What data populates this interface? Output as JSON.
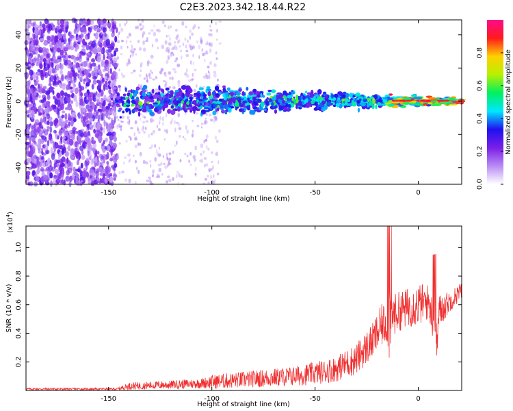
{
  "title": "C2E3.2023.342.18.44.R22",
  "chart_data": [
    {
      "type": "heatmap",
      "xlabel": "Height of straight line (km)",
      "ylabel": "Frequency (Hz)",
      "xlim": [
        -190,
        21
      ],
      "ylim": [
        -50,
        49
      ],
      "xticks": [
        -150,
        -100,
        -50,
        0
      ],
      "yticks": [
        -40,
        -20,
        0,
        20,
        40
      ],
      "colorbar": {
        "label": "Normalized spectral amplitude",
        "range": [
          0,
          1
        ],
        "ticks": [
          0.0,
          0.2,
          0.4,
          0.6,
          0.8
        ],
        "colormap": [
          "#ffffff",
          "#b98cf5",
          "#7a1fe6",
          "#1f10f0",
          "#00e8ff",
          "#00f060",
          "#b8f000",
          "#ffd000",
          "#ff1b1b",
          "#ff0a8c"
        ]
      },
      "features": {
        "noise_region_x": [
          -190,
          -146
        ],
        "band_start_x": -146,
        "band_center_y": 0,
        "band_halfwidth_start": 10,
        "band_halfwidth_end": 2,
        "peak_region_x": [
          -15,
          21
        ]
      },
      "grid": false
    },
    {
      "type": "line",
      "xlabel": "Height of straight line (km)",
      "ylabel": "SNR (10 * v/v)",
      "y_multiplier_label": "(x10",
      "y_multiplier_exp": "4",
      "y_multiplier_close": ")",
      "xlim": [
        -190,
        21
      ],
      "ylim": [
        0,
        1.15
      ],
      "xticks": [
        -150,
        -100,
        -50,
        0
      ],
      "yticks": [
        0.2,
        0.4,
        0.6,
        0.8,
        1.0
      ],
      "color": "#f03030",
      "envelope": {
        "x": [
          -190,
          -146,
          -140,
          -120,
          -105,
          -100,
          -80,
          -60,
          -50,
          -40,
          -30,
          -22,
          -18,
          -15,
          -14,
          -13,
          -10,
          -5,
          0,
          5,
          8,
          9,
          10,
          15,
          21
        ],
        "base": [
          0.01,
          0.01,
          0.03,
          0.04,
          0.05,
          0.06,
          0.08,
          0.1,
          0.12,
          0.15,
          0.22,
          0.35,
          0.45,
          0.48,
          0.5,
          0.52,
          0.55,
          0.58,
          0.6,
          0.62,
          0.45,
          0.32,
          0.55,
          0.62,
          0.7
        ],
        "amp": [
          0.015,
          0.015,
          0.05,
          0.06,
          0.07,
          0.1,
          0.12,
          0.14,
          0.16,
          0.18,
          0.22,
          0.25,
          0.3,
          0.3,
          0.65,
          0.3,
          0.28,
          0.28,
          0.3,
          0.25,
          0.3,
          0.25,
          0.25,
          0.15,
          0.12
        ]
      },
      "grid": false
    }
  ]
}
